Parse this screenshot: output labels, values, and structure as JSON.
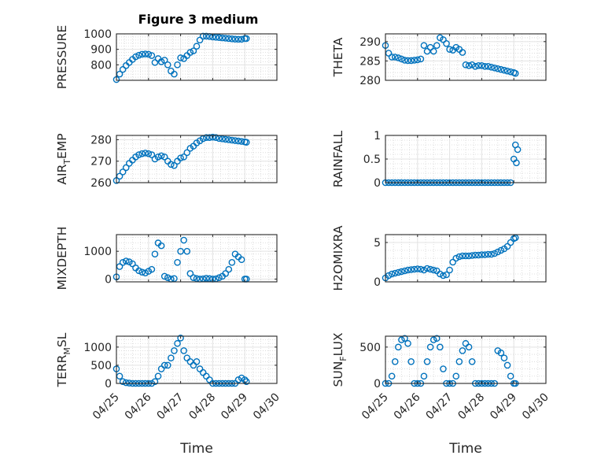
{
  "figure_title": "Figure 3 medium",
  "marker_color": "#0072BD",
  "chart_data": [
    {
      "type": "scatter",
      "name": "PRESSURE",
      "ylabel": "PRESSURE",
      "ylim": [
        700,
        1000
      ],
      "yticks": [
        800,
        900,
        1000
      ],
      "xlim": [
        0,
        5
      ],
      "xlabel": "",
      "grid": true,
      "x": [
        0,
        0.1,
        0.2,
        0.3,
        0.4,
        0.5,
        0.6,
        0.7,
        0.8,
        0.9,
        1.0,
        1.1,
        1.2,
        1.3,
        1.4,
        1.5,
        1.6,
        1.7,
        1.8,
        1.9,
        2.0,
        2.1,
        2.2,
        2.3,
        2.4,
        2.5,
        2.6,
        2.7,
        2.8,
        2.9,
        3.0,
        3.1,
        3.2,
        3.3,
        3.4,
        3.5,
        3.6,
        3.7,
        3.8,
        3.9,
        4.0,
        4.05
      ],
      "y": [
        705,
        740,
        770,
        795,
        815,
        835,
        852,
        862,
        868,
        870,
        868,
        860,
        815,
        840,
        820,
        830,
        800,
        760,
        740,
        800,
        845,
        840,
        860,
        880,
        890,
        920,
        960,
        985,
        985,
        983,
        980,
        978,
        976,
        974,
        972,
        970,
        968,
        966,
        965,
        965,
        970,
        970
      ]
    },
    {
      "type": "scatter",
      "name": "THETA",
      "ylabel": "THETA",
      "ylim": [
        280,
        292
      ],
      "yticks": [
        280,
        285,
        290
      ],
      "xlim": [
        0,
        5
      ],
      "grid": true,
      "x": [
        0,
        0.1,
        0.2,
        0.3,
        0.4,
        0.5,
        0.6,
        0.7,
        0.8,
        0.9,
        1.0,
        1.1,
        1.2,
        1.3,
        1.4,
        1.5,
        1.6,
        1.7,
        1.8,
        1.9,
        2.0,
        2.1,
        2.2,
        2.3,
        2.4,
        2.5,
        2.6,
        2.7,
        2.8,
        2.9,
        3.0,
        3.1,
        3.2,
        3.3,
        3.4,
        3.5,
        3.6,
        3.7,
        3.8,
        3.9,
        4.0,
        4.05
      ],
      "y": [
        289,
        287,
        286,
        286,
        285.8,
        285.5,
        285.2,
        285.1,
        285.1,
        285.2,
        285.3,
        285.5,
        289,
        287.5,
        288.5,
        287.5,
        289,
        291,
        290.5,
        289.5,
        288,
        287.8,
        288.5,
        288,
        287.2,
        284,
        283.8,
        284,
        283.6,
        283.8,
        283.8,
        283.6,
        283.6,
        283.4,
        283.2,
        283,
        282.8,
        282.6,
        282.4,
        282.2,
        282,
        281.8
      ]
    },
    {
      "type": "scatter",
      "name": "AIR_TEMP",
      "ylabel": "AIR_TEMP",
      "ylim": [
        260,
        282
      ],
      "yticks": [
        260,
        270,
        280
      ],
      "xlim": [
        0,
        5
      ],
      "grid": true,
      "x": [
        0,
        0.1,
        0.2,
        0.3,
        0.4,
        0.5,
        0.6,
        0.7,
        0.8,
        0.9,
        1.0,
        1.1,
        1.2,
        1.3,
        1.4,
        1.5,
        1.6,
        1.7,
        1.8,
        1.9,
        2.0,
        2.1,
        2.2,
        2.3,
        2.4,
        2.5,
        2.6,
        2.7,
        2.8,
        2.9,
        3.0,
        3.1,
        3.2,
        3.3,
        3.4,
        3.5,
        3.6,
        3.7,
        3.8,
        3.9,
        4.0,
        4.05
      ],
      "y": [
        261,
        263,
        265,
        267,
        269,
        270.5,
        272,
        273,
        273.5,
        273.8,
        273.5,
        273,
        271,
        272,
        272.5,
        272,
        270,
        268.5,
        268,
        270,
        271.5,
        272,
        274,
        276,
        277,
        278.5,
        279.5,
        280.5,
        281,
        281,
        281.2,
        281,
        280.6,
        280.4,
        280.2,
        280,
        279.8,
        279.6,
        279.4,
        279.2,
        279,
        278.8
      ]
    },
    {
      "type": "scatter",
      "name": "RAINFALL",
      "ylabel": "RAINFALL",
      "ylim": [
        0,
        1
      ],
      "yticks": [
        0,
        0.5,
        1
      ],
      "yticklabels": [
        "0",
        "0.5",
        "1"
      ],
      "xlim": [
        0,
        5
      ],
      "grid": true,
      "x": [
        0,
        0.1,
        0.2,
        0.3,
        0.4,
        0.5,
        0.6,
        0.7,
        0.8,
        0.9,
        1.0,
        1.1,
        1.2,
        1.3,
        1.4,
        1.5,
        1.6,
        1.7,
        1.8,
        1.9,
        2.0,
        2.1,
        2.2,
        2.3,
        2.4,
        2.5,
        2.6,
        2.7,
        2.8,
        2.9,
        3.0,
        3.1,
        3.2,
        3.3,
        3.4,
        3.5,
        3.6,
        3.7,
        3.8,
        3.9,
        4.0,
        4.05,
        4.08,
        4.12
      ],
      "y": [
        0,
        0,
        0,
        0,
        0,
        0,
        0,
        0,
        0,
        0,
        0,
        0,
        0,
        0,
        0,
        0,
        0,
        0,
        0,
        0,
        0,
        0,
        0,
        0,
        0,
        0,
        0,
        0,
        0,
        0,
        0,
        0,
        0,
        0,
        0,
        0,
        0,
        0,
        0,
        0,
        0.5,
        0.8,
        0.42,
        0.7
      ]
    },
    {
      "type": "scatter",
      "name": "MIXDEPTH",
      "ylabel": "MIXDEPTH",
      "ylim": [
        -100,
        1600
      ],
      "yticks": [
        0,
        1000
      ],
      "xlim": [
        0,
        5
      ],
      "grid": true,
      "x": [
        0,
        0.1,
        0.2,
        0.3,
        0.4,
        0.5,
        0.6,
        0.7,
        0.8,
        0.9,
        1.0,
        1.1,
        1.2,
        1.3,
        1.4,
        1.5,
        1.6,
        1.7,
        1.8,
        1.9,
        2.0,
        2.1,
        2.2,
        2.3,
        2.4,
        2.5,
        2.6,
        2.7,
        2.8,
        2.9,
        3.0,
        3.1,
        3.2,
        3.3,
        3.4,
        3.5,
        3.6,
        3.7,
        3.8,
        3.9,
        4.0,
        4.05
      ],
      "y": [
        80,
        450,
        600,
        650,
        620,
        550,
        400,
        300,
        250,
        220,
        280,
        350,
        900,
        1300,
        1200,
        100,
        50,
        0,
        20,
        600,
        1000,
        1400,
        1000,
        200,
        50,
        20,
        0,
        10,
        30,
        20,
        0,
        10,
        50,
        100,
        200,
        350,
        600,
        900,
        800,
        700,
        0,
        0
      ]
    },
    {
      "type": "scatter",
      "name": "H2OMIXRA",
      "ylabel": "H2OMIXRA",
      "ylim": [
        0,
        6
      ],
      "yticks": [
        0,
        5
      ],
      "xlim": [
        0,
        5
      ],
      "grid": true,
      "x": [
        0,
        0.1,
        0.2,
        0.3,
        0.4,
        0.5,
        0.6,
        0.7,
        0.8,
        0.9,
        1.0,
        1.1,
        1.2,
        1.3,
        1.4,
        1.5,
        1.6,
        1.7,
        1.8,
        1.9,
        2.0,
        2.1,
        2.2,
        2.3,
        2.4,
        2.5,
        2.6,
        2.7,
        2.8,
        2.9,
        3.0,
        3.1,
        3.2,
        3.3,
        3.4,
        3.5,
        3.6,
        3.7,
        3.8,
        3.9,
        4.0,
        4.05
      ],
      "y": [
        0.5,
        0.8,
        1.0,
        1.1,
        1.2,
        1.3,
        1.4,
        1.5,
        1.55,
        1.6,
        1.65,
        1.6,
        1.5,
        1.7,
        1.6,
        1.5,
        1.4,
        1.0,
        0.8,
        0.9,
        1.5,
        2.5,
        3.0,
        3.2,
        3.3,
        3.3,
        3.3,
        3.35,
        3.4,
        3.4,
        3.45,
        3.45,
        3.5,
        3.5,
        3.6,
        3.8,
        4.0,
        4.2,
        4.5,
        5.0,
        5.5,
        5.6
      ]
    },
    {
      "type": "scatter",
      "name": "TERR_MSL",
      "ylabel": "TERR_MSL",
      "ylim": [
        0,
        1300
      ],
      "yticks": [
        0,
        500,
        1000
      ],
      "xlim": [
        0,
        5
      ],
      "xlabel": "Time",
      "xticklabels": [
        "04/25",
        "04/26",
        "04/27",
        "04/28",
        "04/29",
        "04/30"
      ],
      "grid": true,
      "x": [
        0,
        0.1,
        0.2,
        0.3,
        0.4,
        0.5,
        0.6,
        0.7,
        0.8,
        0.9,
        1.0,
        1.1,
        1.2,
        1.3,
        1.4,
        1.5,
        1.6,
        1.7,
        1.8,
        1.9,
        2.0,
        2.1,
        2.2,
        2.3,
        2.4,
        2.5,
        2.6,
        2.7,
        2.8,
        2.9,
        3.0,
        3.1,
        3.2,
        3.3,
        3.4,
        3.5,
        3.6,
        3.7,
        3.8,
        3.9,
        4.0,
        4.05
      ],
      "y": [
        400,
        200,
        50,
        20,
        10,
        0,
        0,
        0,
        0,
        0,
        0,
        0,
        50,
        200,
        400,
        500,
        500,
        700,
        900,
        1100,
        1250,
        900,
        700,
        600,
        500,
        600,
        400,
        300,
        200,
        100,
        0,
        0,
        0,
        0,
        0,
        0,
        0,
        0,
        100,
        150,
        100,
        50
      ]
    },
    {
      "type": "scatter",
      "name": "SUN_FLUX",
      "ylabel": "SUN_FLUX",
      "ylim": [
        0,
        650
      ],
      "yticks": [
        0,
        500
      ],
      "xlim": [
        0,
        5
      ],
      "xlabel": "Time",
      "xticklabels": [
        "04/25",
        "04/26",
        "04/27",
        "04/28",
        "04/29",
        "04/30"
      ],
      "grid": true,
      "x": [
        0,
        0.1,
        0.2,
        0.3,
        0.4,
        0.5,
        0.6,
        0.7,
        0.8,
        0.9,
        1.0,
        1.1,
        1.2,
        1.3,
        1.4,
        1.5,
        1.6,
        1.7,
        1.8,
        1.9,
        2.0,
        2.1,
        2.2,
        2.3,
        2.4,
        2.5,
        2.6,
        2.7,
        2.8,
        2.9,
        3.0,
        3.1,
        3.2,
        3.3,
        3.4,
        3.5,
        3.6,
        3.7,
        3.8,
        3.9,
        4.0,
        4.05
      ],
      "y": [
        0,
        0,
        100,
        300,
        500,
        600,
        620,
        550,
        300,
        0,
        0,
        0,
        100,
        300,
        500,
        600,
        620,
        500,
        200,
        0,
        0,
        0,
        100,
        300,
        450,
        550,
        500,
        300,
        0,
        0,
        0,
        0,
        0,
        0,
        0,
        450,
        420,
        350,
        250,
        100,
        0,
        0
      ]
    }
  ]
}
